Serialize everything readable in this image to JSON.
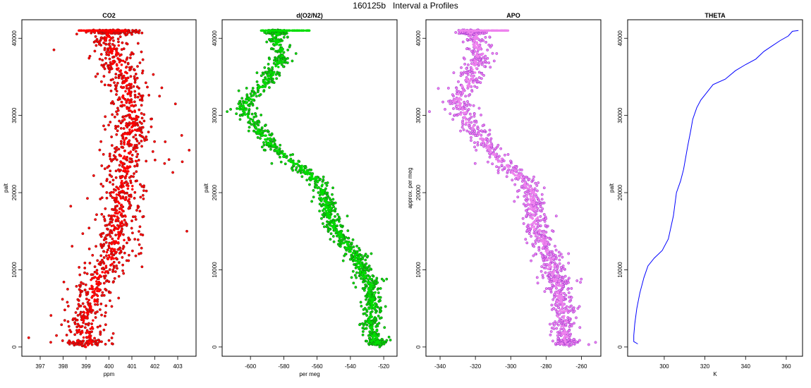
{
  "figure": {
    "title": "160125b   Interval a Profiles"
  },
  "chart_data": [
    {
      "type": "scatter",
      "title": "CO2",
      "xlabel": "ppm",
      "ylabel": "palt",
      "xlim": [
        396.2,
        403.8
      ],
      "ylim": [
        -1200,
        42400
      ],
      "xticks": [
        397,
        398,
        399,
        400,
        401,
        402,
        403
      ],
      "yticks": [
        0,
        10000,
        20000,
        30000,
        40000
      ],
      "color": "#ff0000",
      "edge": "#8b1a1a",
      "grid": false,
      "profile": [
        [
          0,
          398.9
        ],
        [
          500,
          399.1
        ],
        [
          2000,
          398.9
        ],
        [
          5000,
          399.2
        ],
        [
          8000,
          399.4
        ],
        [
          10000,
          399.7
        ],
        [
          12000,
          400.1
        ],
        [
          15000,
          400.4
        ],
        [
          18000,
          400.5
        ],
        [
          20000,
          400.6
        ],
        [
          22000,
          400.7
        ],
        [
          25000,
          400.8
        ],
        [
          28000,
          400.9
        ],
        [
          30000,
          401.0
        ],
        [
          32000,
          400.9
        ],
        [
          34000,
          400.8
        ],
        [
          36000,
          400.6
        ],
        [
          38000,
          400.2
        ],
        [
          40000,
          399.9
        ],
        [
          41000,
          400.2
        ]
      ],
      "spread": 0.8,
      "extra_points": [
        [
          396.5,
          1200
        ],
        [
          403.4,
          15000
        ],
        [
          403.5,
          25500
        ],
        [
          397.6,
          38500
        ],
        [
          402.9,
          31500
        ],
        [
          403.2,
          24000
        ]
      ]
    },
    {
      "type": "scatter",
      "title": "d(O2/N2)",
      "xlabel": "per meg",
      "ylabel": "palt",
      "xlim": [
        -617,
        -512
      ],
      "ylim": [
        -1200,
        42400
      ],
      "xticks": [
        -600,
        -580,
        -560,
        -540,
        -520
      ],
      "yticks": [
        0,
        10000,
        20000,
        30000,
        40000
      ],
      "color": "#00dd00",
      "edge": "#1a6b1a",
      "grid": false,
      "profile": [
        [
          0,
          -523
        ],
        [
          1000,
          -525
        ],
        [
          3000,
          -528
        ],
        [
          6000,
          -527
        ],
        [
          8000,
          -528
        ],
        [
          10000,
          -533
        ],
        [
          12000,
          -537
        ],
        [
          14000,
          -545
        ],
        [
          16000,
          -551
        ],
        [
          18000,
          -554
        ],
        [
          20000,
          -556
        ],
        [
          22000,
          -562
        ],
        [
          24000,
          -575
        ],
        [
          26000,
          -587
        ],
        [
          28000,
          -594
        ],
        [
          30000,
          -602
        ],
        [
          31000,
          -605
        ],
        [
          32000,
          -601
        ],
        [
          34000,
          -592
        ],
        [
          36000,
          -585
        ],
        [
          38000,
          -581
        ],
        [
          40000,
          -585
        ],
        [
          41000,
          -583
        ]
      ],
      "spread": 5,
      "extra_points": [
        [
          -614,
          30500
        ],
        [
          -516,
          900
        ],
        [
          -521,
          8800
        ],
        [
          -607,
          33200
        ]
      ]
    },
    {
      "type": "scatter",
      "title": "APO",
      "xlabel": "",
      "ylabel": "approx. per meg",
      "xlim": [
        -348,
        -249
      ],
      "ylim": [
        -1200,
        42400
      ],
      "xticks": [
        -340,
        -320,
        -300,
        -280,
        -260
      ],
      "yticks": [
        0,
        10000,
        20000,
        30000,
        40000
      ],
      "color": "#ee82ee",
      "edge": "#9932cc",
      "grid": false,
      "profile": [
        [
          0,
          -268
        ],
        [
          2000,
          -270
        ],
        [
          5000,
          -271
        ],
        [
          8000,
          -273
        ],
        [
          10000,
          -276
        ],
        [
          12000,
          -279
        ],
        [
          14000,
          -283
        ],
        [
          16000,
          -286
        ],
        [
          18000,
          -288
        ],
        [
          20000,
          -288
        ],
        [
          22000,
          -294
        ],
        [
          24000,
          -305
        ],
        [
          26000,
          -313
        ],
        [
          28000,
          -320
        ],
        [
          30000,
          -327
        ],
        [
          32000,
          -330
        ],
        [
          34000,
          -324
        ],
        [
          36000,
          -320
        ],
        [
          38000,
          -318
        ],
        [
          40000,
          -320
        ],
        [
          41000,
          -322
        ]
      ],
      "spread": 6,
      "extra_points": [
        [
          -346,
          30500
        ],
        [
          -252,
          600
        ],
        [
          -262,
          5000
        ],
        [
          -341,
          33500
        ]
      ]
    },
    {
      "type": "line",
      "title": "THETA",
      "xlabel": "K",
      "ylabel": "palt",
      "xlim": [
        282,
        368
      ],
      "ylim": [
        -1200,
        42400
      ],
      "xticks": [
        300,
        320,
        340,
        360
      ],
      "yticks": [
        0,
        10000,
        20000,
        30000,
        40000
      ],
      "color": "#0000ff",
      "grid": false,
      "line": [
        [
          287,
          400
        ],
        [
          285,
          700
        ],
        [
          285,
          1500
        ],
        [
          285.5,
          3000
        ],
        [
          286.5,
          5000
        ],
        [
          288,
          7000
        ],
        [
          290,
          9000
        ],
        [
          292,
          10500
        ],
        [
          295,
          11500
        ],
        [
          299,
          12500
        ],
        [
          302,
          14000
        ],
        [
          304.5,
          17000
        ],
        [
          306,
          20000
        ],
        [
          308,
          21500
        ],
        [
          309.5,
          23000
        ],
        [
          311.5,
          26000
        ],
        [
          313,
          28000
        ],
        [
          314,
          29500
        ],
        [
          316,
          31000
        ],
        [
          318,
          32000
        ],
        [
          321,
          33000
        ],
        [
          324,
          34000
        ],
        [
          330,
          34700
        ],
        [
          335,
          35800
        ],
        [
          340,
          36600
        ],
        [
          345,
          37300
        ],
        [
          349,
          38300
        ],
        [
          353,
          39000
        ],
        [
          357,
          39700
        ],
        [
          361,
          40300
        ],
        [
          363,
          40900
        ],
        [
          366,
          41000
        ]
      ]
    }
  ]
}
